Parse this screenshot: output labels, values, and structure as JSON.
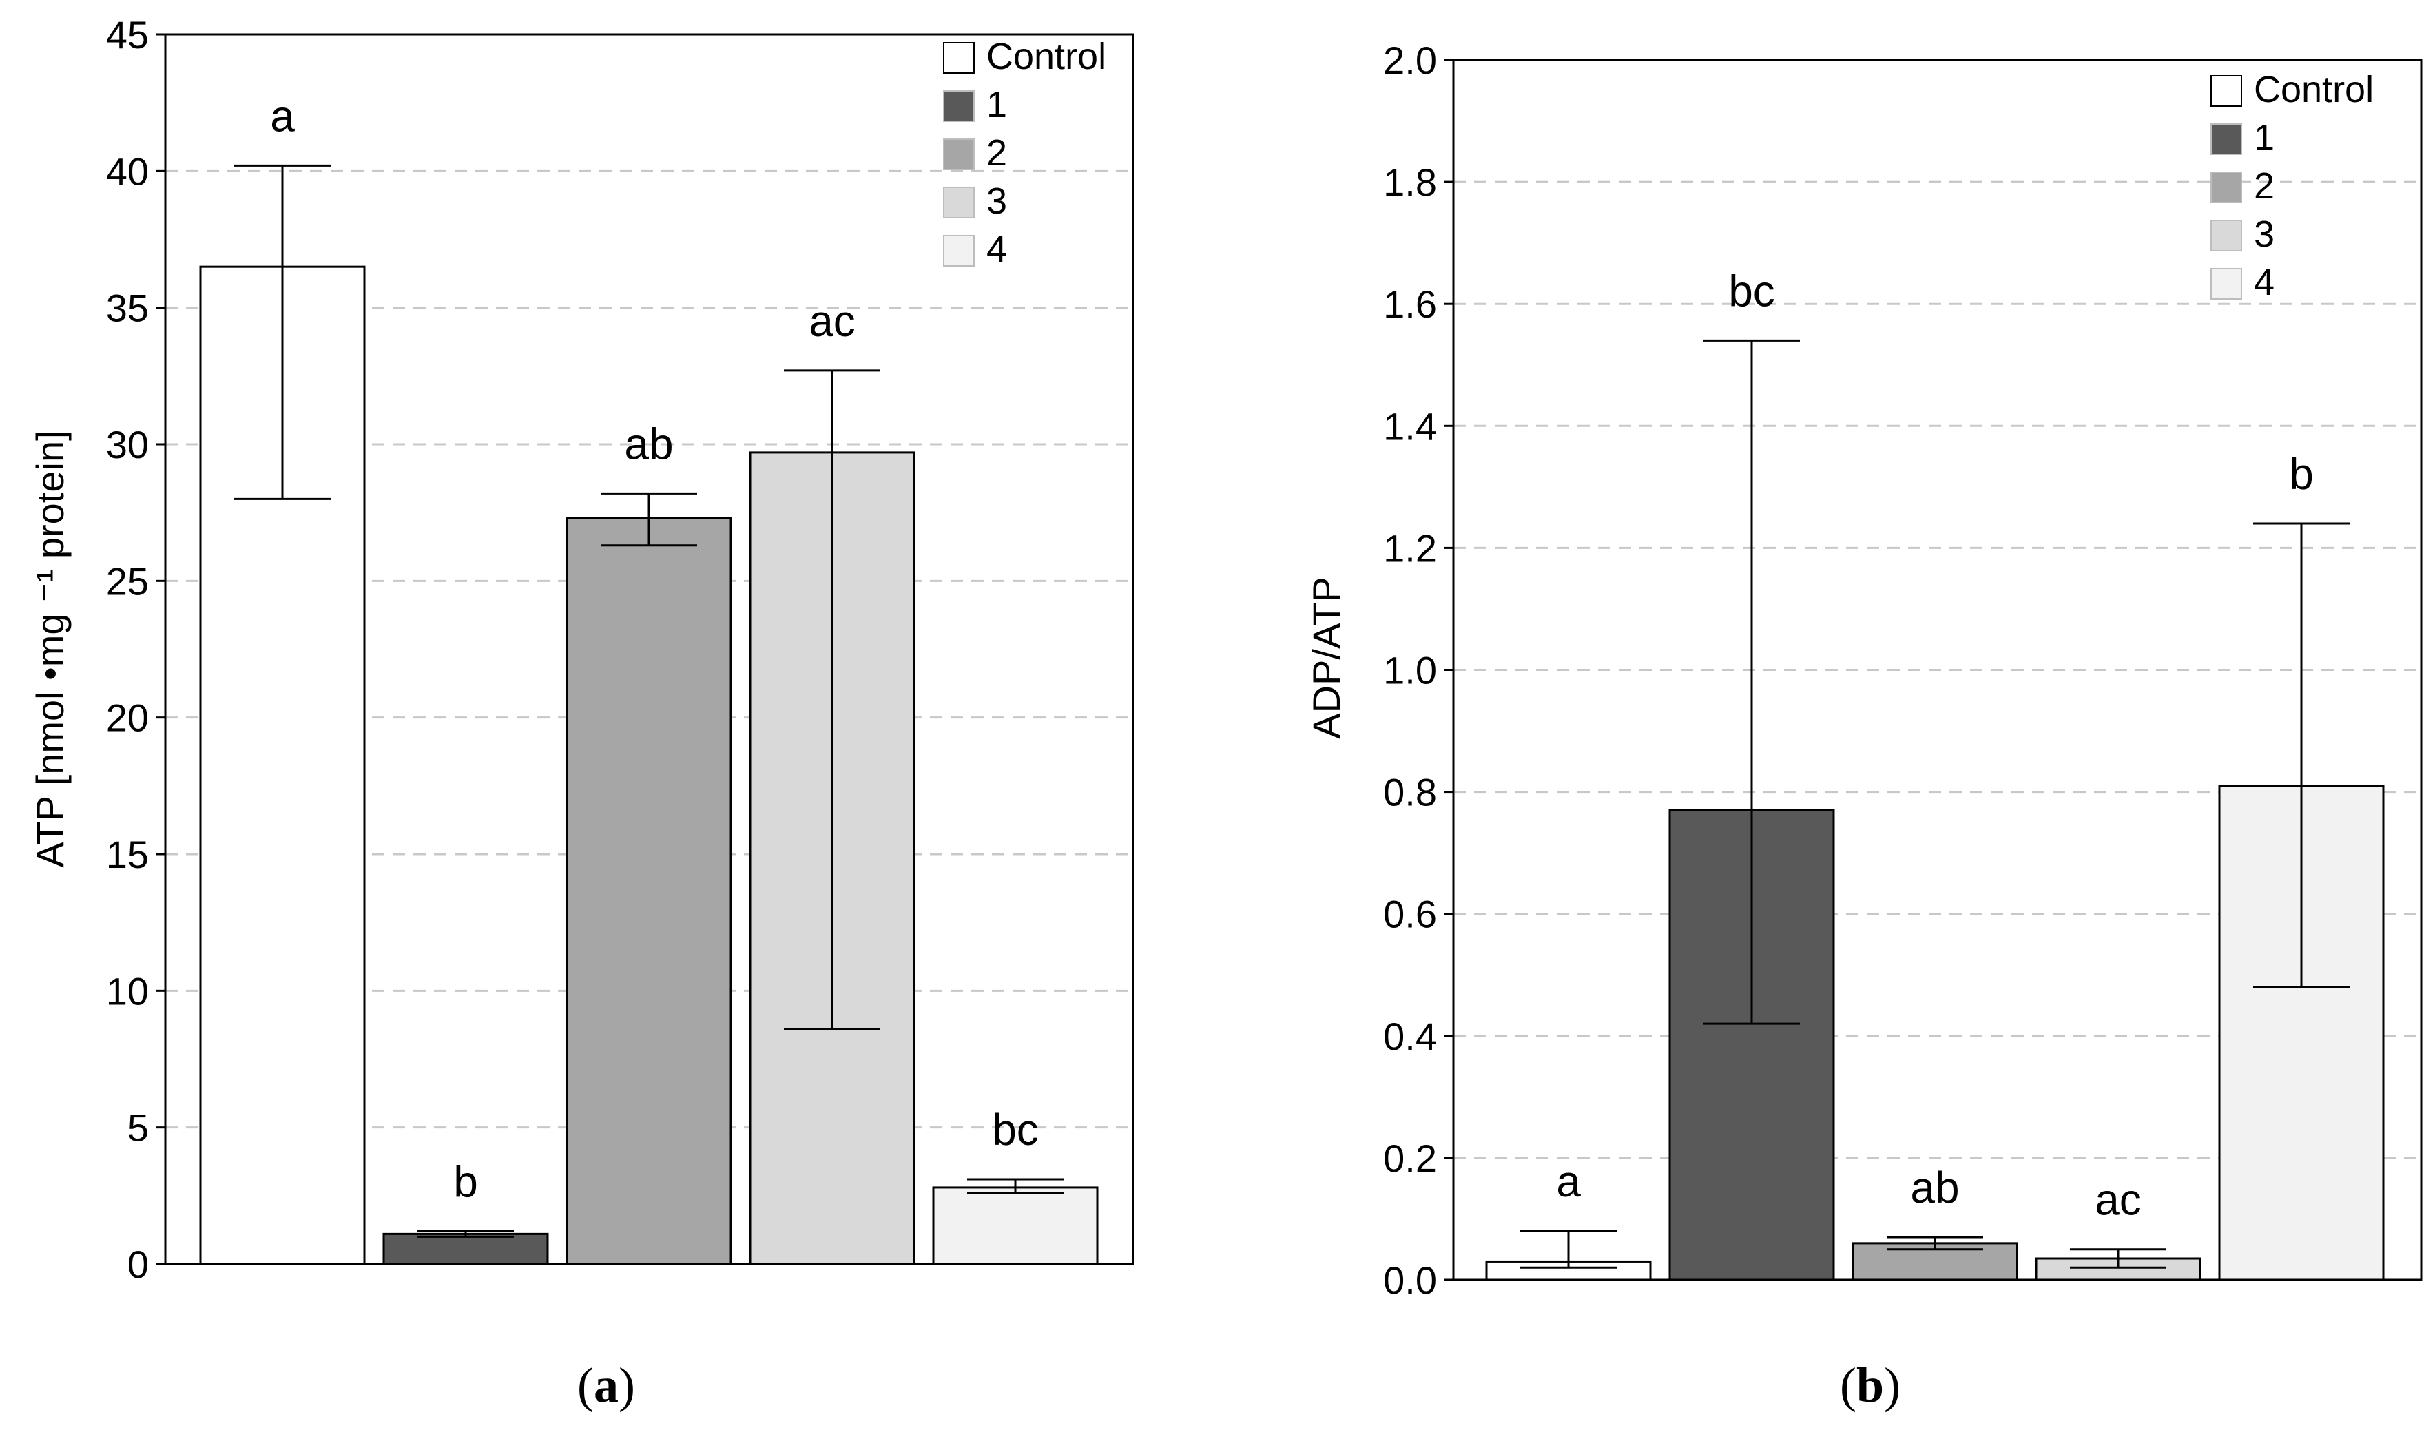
{
  "chart_data": [
    {
      "type": "bar",
      "panel_label": "a",
      "ylabel": "ATP [nmol •mg ⁻¹ protein]",
      "ylim": [
        0,
        45
      ],
      "yticks": [
        "0",
        "5",
        "10",
        "15",
        "20",
        "25",
        "30",
        "35",
        "40",
        "45"
      ],
      "grid": true,
      "legend_position": "top-right",
      "categories": [
        "Control",
        "1",
        "2",
        "3",
        "4"
      ],
      "colors": [
        "#ffffff",
        "#595959",
        "#a6a6a6",
        "#d9d9d9",
        "#f2f2f2"
      ],
      "values": [
        36.5,
        1.1,
        27.3,
        29.7,
        2.8
      ],
      "err_low": [
        28.0,
        1.0,
        26.3,
        8.6,
        2.6
      ],
      "err_high": [
        40.2,
        1.2,
        28.2,
        32.7,
        3.1
      ],
      "significance": [
        "a",
        "b",
        "ab",
        "ac",
        "bc"
      ]
    },
    {
      "type": "bar",
      "panel_label": "b",
      "ylabel": "ADP/ATP",
      "ylim": [
        0,
        2.0
      ],
      "yticks": [
        "0.0",
        "0.2",
        "0.4",
        "0.6",
        "0.8",
        "1.0",
        "1.2",
        "1.4",
        "1.6",
        "1.8",
        "2.0"
      ],
      "grid": true,
      "legend_position": "top-right",
      "categories": [
        "Control",
        "1",
        "2",
        "3",
        "4"
      ],
      "colors": [
        "#ffffff",
        "#595959",
        "#a6a6a6",
        "#d9d9d9",
        "#f2f2f2"
      ],
      "values": [
        0.03,
        0.77,
        0.06,
        0.035,
        0.81
      ],
      "err_low": [
        0.02,
        0.42,
        0.05,
        0.02,
        0.48
      ],
      "err_high": [
        0.08,
        1.54,
        0.07,
        0.05,
        1.24
      ],
      "significance": [
        "a",
        "bc",
        "ab",
        "ac",
        "b"
      ]
    }
  ]
}
